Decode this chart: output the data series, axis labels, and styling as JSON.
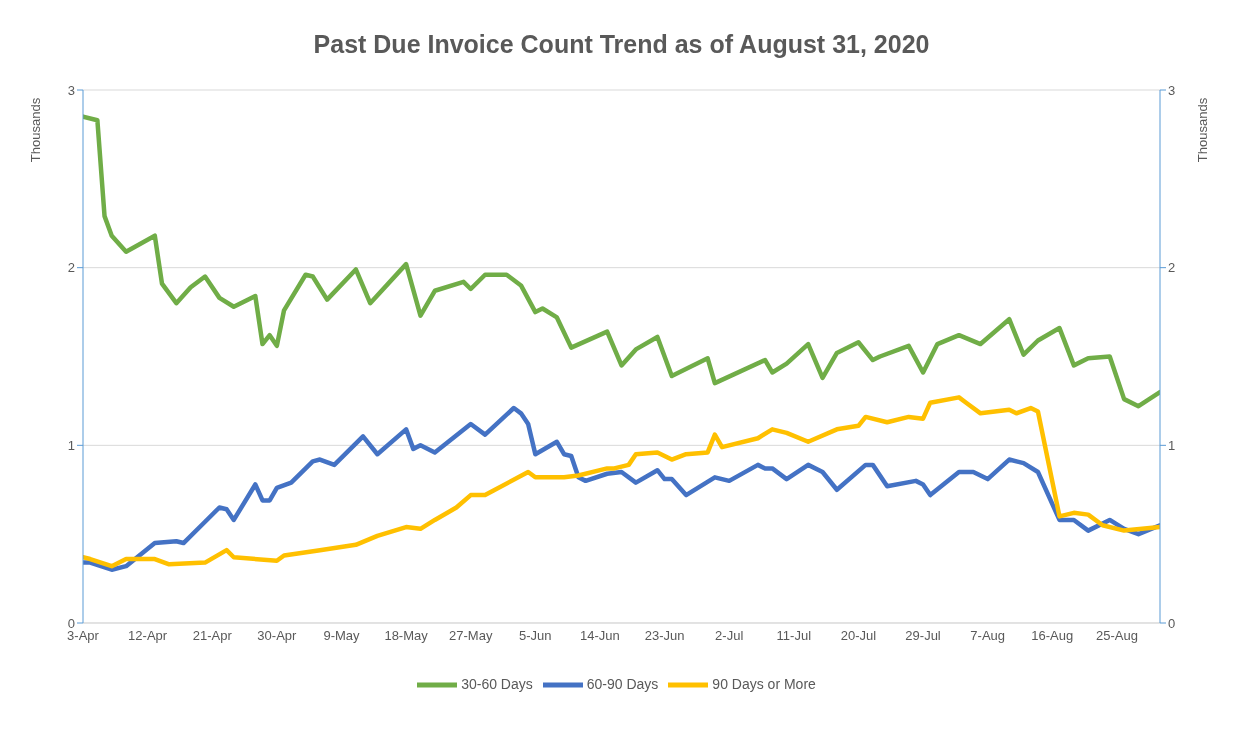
{
  "chart_data": {
    "type": "line",
    "title": "Past Due Invoice Count Trend as of August 31, 2020",
    "ylabel": "Thousands",
    "y2label": "Thousands",
    "xlim": [
      "2020-04-03",
      "2020-08-31"
    ],
    "xticks": [
      {
        "value": "2020-04-03",
        "label": "3-Apr"
      },
      {
        "value": "2020-04-12",
        "label": "12-Apr"
      },
      {
        "value": "2020-04-21",
        "label": "21-Apr"
      },
      {
        "value": "2020-04-30",
        "label": "30-Apr"
      },
      {
        "value": "2020-05-09",
        "label": "9-May"
      },
      {
        "value": "2020-05-18",
        "label": "18-May"
      },
      {
        "value": "2020-05-27",
        "label": "27-May"
      },
      {
        "value": "2020-06-05",
        "label": "5-Jun"
      },
      {
        "value": "2020-06-14",
        "label": "14-Jun"
      },
      {
        "value": "2020-06-23",
        "label": "23-Jun"
      },
      {
        "value": "2020-07-02",
        "label": "2-Jul"
      },
      {
        "value": "2020-07-11",
        "label": "11-Jul"
      },
      {
        "value": "2020-07-20",
        "label": "20-Jul"
      },
      {
        "value": "2020-07-29",
        "label": "29-Jul"
      },
      {
        "value": "2020-08-07",
        "label": "7-Aug"
      },
      {
        "value": "2020-08-16",
        "label": "16-Aug"
      },
      {
        "value": "2020-08-25",
        "label": "25-Aug"
      }
    ],
    "ylim": [
      0,
      3
    ],
    "yticks": [
      0,
      1,
      2,
      3
    ],
    "y2lim": [
      0,
      3
    ],
    "y2ticks": [
      0,
      1,
      2,
      3
    ],
    "grid": "y",
    "legend": "bottom",
    "marker": "none",
    "line_style": "solid",
    "series": [
      {
        "name": "30-60 Days",
        "color": "#70ad47",
        "x": [
          "2020-04-03",
          "2020-04-05",
          "2020-04-06",
          "2020-04-07",
          "2020-04-09",
          "2020-04-13",
          "2020-04-14",
          "2020-04-16",
          "2020-04-18",
          "2020-04-20",
          "2020-04-22",
          "2020-04-24",
          "2020-04-27",
          "2020-04-28",
          "2020-04-29",
          "2020-04-30",
          "2020-05-01",
          "2020-05-04",
          "2020-05-05",
          "2020-05-07",
          "2020-05-11",
          "2020-05-13",
          "2020-05-18",
          "2020-05-20",
          "2020-05-22",
          "2020-05-26",
          "2020-05-27",
          "2020-05-29",
          "2020-06-01",
          "2020-06-03",
          "2020-06-05",
          "2020-06-06",
          "2020-06-08",
          "2020-06-10",
          "2020-06-15",
          "2020-06-17",
          "2020-06-19",
          "2020-06-22",
          "2020-06-24",
          "2020-06-29",
          "2020-06-30",
          "2020-07-07",
          "2020-07-08",
          "2020-07-10",
          "2020-07-13",
          "2020-07-15",
          "2020-07-17",
          "2020-07-20",
          "2020-07-22",
          "2020-07-23",
          "2020-07-27",
          "2020-07-29",
          "2020-07-31",
          "2020-08-03",
          "2020-08-06",
          "2020-08-10",
          "2020-08-12",
          "2020-08-14",
          "2020-08-17",
          "2020-08-19",
          "2020-08-21",
          "2020-08-24",
          "2020-08-26",
          "2020-08-28",
          "2020-08-31"
        ],
        "values": [
          2.85,
          2.83,
          2.29,
          2.18,
          2.09,
          2.18,
          1.91,
          1.8,
          1.89,
          1.95,
          1.83,
          1.78,
          1.84,
          1.57,
          1.62,
          1.56,
          1.76,
          1.96,
          1.95,
          1.82,
          1.99,
          1.8,
          2.02,
          1.73,
          1.87,
          1.92,
          1.88,
          1.96,
          1.96,
          1.9,
          1.75,
          1.77,
          1.72,
          1.55,
          1.64,
          1.45,
          1.54,
          1.61,
          1.39,
          1.49,
          1.35,
          1.48,
          1.41,
          1.46,
          1.57,
          1.38,
          1.52,
          1.58,
          1.48,
          1.5,
          1.56,
          1.41,
          1.57,
          1.62,
          1.57,
          1.71,
          1.51,
          1.59,
          1.66,
          1.45,
          1.49,
          1.5,
          1.26,
          1.22,
          1.3
        ]
      },
      {
        "name": "60-90 Days",
        "color": "#4472c4",
        "x": [
          "2020-04-03",
          "2020-04-04",
          "2020-04-07",
          "2020-04-09",
          "2020-04-13",
          "2020-04-16",
          "2020-04-17",
          "2020-04-20",
          "2020-04-22",
          "2020-04-23",
          "2020-04-24",
          "2020-04-27",
          "2020-04-28",
          "2020-04-29",
          "2020-04-30",
          "2020-05-02",
          "2020-05-05",
          "2020-05-06",
          "2020-05-08",
          "2020-05-12",
          "2020-05-14",
          "2020-05-18",
          "2020-05-19",
          "2020-05-20",
          "2020-05-22",
          "2020-05-27",
          "2020-05-29",
          "2020-06-02",
          "2020-06-03",
          "2020-06-04",
          "2020-06-05",
          "2020-06-08",
          "2020-06-09",
          "2020-06-10",
          "2020-06-11",
          "2020-06-12",
          "2020-06-15",
          "2020-06-17",
          "2020-06-19",
          "2020-06-22",
          "2020-06-23",
          "2020-06-24",
          "2020-06-26",
          "2020-06-30",
          "2020-07-02",
          "2020-07-06",
          "2020-07-07",
          "2020-07-08",
          "2020-07-10",
          "2020-07-13",
          "2020-07-15",
          "2020-07-17",
          "2020-07-21",
          "2020-07-22",
          "2020-07-24",
          "2020-07-28",
          "2020-07-29",
          "2020-07-30",
          "2020-08-03",
          "2020-08-05",
          "2020-08-07",
          "2020-08-10",
          "2020-08-12",
          "2020-08-14",
          "2020-08-17",
          "2020-08-19",
          "2020-08-21",
          "2020-08-24",
          "2020-08-26",
          "2020-08-28",
          "2020-08-31"
        ],
        "values": [
          0.34,
          0.34,
          0.3,
          0.32,
          0.45,
          0.46,
          0.45,
          0.57,
          0.65,
          0.64,
          0.58,
          0.78,
          0.69,
          0.69,
          0.76,
          0.79,
          0.91,
          0.92,
          0.89,
          1.05,
          0.95,
          1.09,
          0.98,
          1.0,
          0.96,
          1.12,
          1.06,
          1.21,
          1.18,
          1.12,
          0.95,
          1.02,
          0.95,
          0.94,
          0.82,
          0.8,
          0.84,
          0.85,
          0.79,
          0.86,
          0.81,
          0.81,
          0.72,
          0.82,
          0.8,
          0.89,
          0.87,
          0.87,
          0.81,
          0.89,
          0.85,
          0.75,
          0.89,
          0.89,
          0.77,
          0.8,
          0.78,
          0.72,
          0.85,
          0.85,
          0.81,
          0.92,
          0.9,
          0.85,
          0.58,
          0.58,
          0.52,
          0.58,
          0.53,
          0.5,
          0.55
        ]
      },
      {
        "name": "90 Days or More",
        "color": "#ffc000",
        "x": [
          "2020-04-03",
          "2020-04-04",
          "2020-04-07",
          "2020-04-09",
          "2020-04-13",
          "2020-04-15",
          "2020-04-20",
          "2020-04-23",
          "2020-04-24",
          "2020-04-30",
          "2020-05-01",
          "2020-05-06",
          "2020-05-11",
          "2020-05-14",
          "2020-05-18",
          "2020-05-20",
          "2020-05-22",
          "2020-05-25",
          "2020-05-27",
          "2020-05-29",
          "2020-06-04",
          "2020-06-05",
          "2020-06-09",
          "2020-06-11",
          "2020-06-15",
          "2020-06-16",
          "2020-06-18",
          "2020-06-19",
          "2020-06-22",
          "2020-06-24",
          "2020-06-26",
          "2020-06-29",
          "2020-06-30",
          "2020-07-01",
          "2020-07-06",
          "2020-07-08",
          "2020-07-10",
          "2020-07-13",
          "2020-07-17",
          "2020-07-20",
          "2020-07-21",
          "2020-07-24",
          "2020-07-27",
          "2020-07-29",
          "2020-07-30",
          "2020-08-03",
          "2020-08-04",
          "2020-08-06",
          "2020-08-10",
          "2020-08-11",
          "2020-08-13",
          "2020-08-14",
          "2020-08-17",
          "2020-08-19",
          "2020-08-21",
          "2020-08-23",
          "2020-08-26",
          "2020-08-31"
        ],
        "values": [
          0.37,
          0.36,
          0.32,
          0.36,
          0.36,
          0.33,
          0.34,
          0.41,
          0.37,
          0.35,
          0.38,
          0.41,
          0.44,
          0.49,
          0.54,
          0.53,
          0.58,
          0.65,
          0.72,
          0.72,
          0.85,
          0.82,
          0.82,
          0.83,
          0.87,
          0.87,
          0.89,
          0.95,
          0.96,
          0.92,
          0.95,
          0.96,
          1.06,
          0.99,
          1.04,
          1.09,
          1.07,
          1.02,
          1.09,
          1.11,
          1.16,
          1.13,
          1.16,
          1.15,
          1.24,
          1.27,
          1.24,
          1.18,
          1.2,
          1.18,
          1.21,
          1.19,
          0.6,
          0.62,
          0.61,
          0.55,
          0.52,
          0.54
        ]
      }
    ]
  }
}
